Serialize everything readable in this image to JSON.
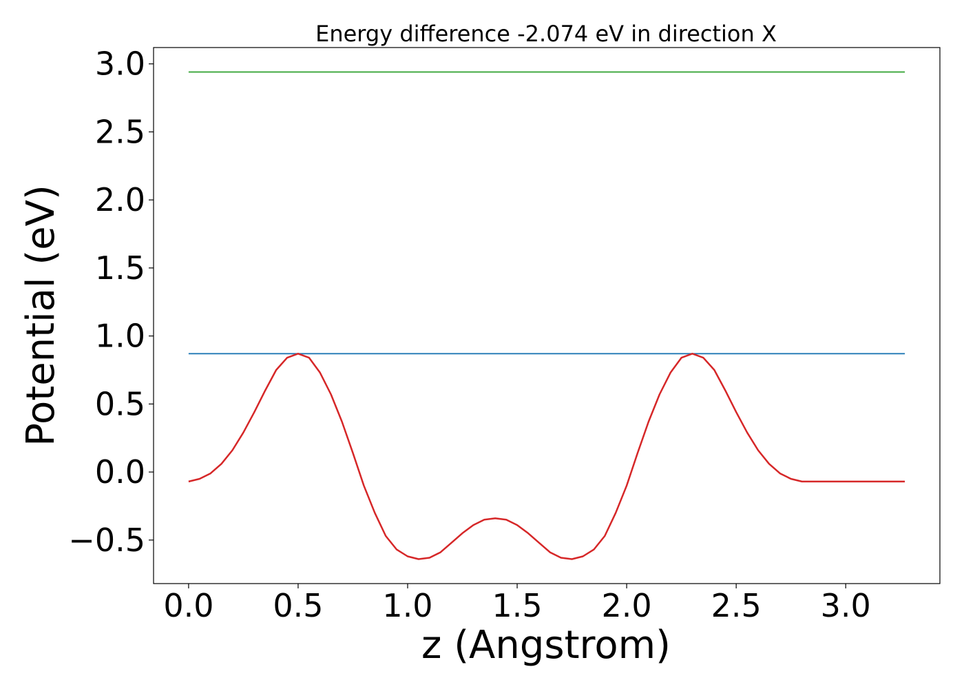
{
  "chart_data": {
    "type": "line",
    "title": "Energy difference -2.074 eV in direction X",
    "xlabel": "z (Angstrom)",
    "ylabel": "Potential (eV)",
    "xlim": [
      -0.16,
      3.43
    ],
    "ylim": [
      -0.82,
      3.12
    ],
    "x_ticks": [
      0.0,
      0.5,
      1.0,
      1.5,
      2.0,
      2.5,
      3.0
    ],
    "x_tick_labels": [
      "0.0",
      "0.5",
      "1.0",
      "1.5",
      "2.0",
      "2.5",
      "3.0"
    ],
    "y_ticks": [
      -0.5,
      0.0,
      0.5,
      1.0,
      1.5,
      2.0,
      2.5,
      3.0
    ],
    "y_tick_labels": [
      "−0.5",
      "0.0",
      "0.5",
      "1.0",
      "1.5",
      "2.0",
      "2.5",
      "3.0"
    ],
    "grid": false,
    "series": [
      {
        "color": "#2ca02c",
        "x": [
          0.0,
          3.27
        ],
        "y": [
          2.94,
          2.94
        ]
      },
      {
        "color": "#1f77b4",
        "x": [
          0.0,
          3.27
        ],
        "y": [
          0.87,
          0.87
        ]
      },
      {
        "color": "#d62728",
        "x": [
          0.0,
          0.05,
          0.1,
          0.15,
          0.2,
          0.25,
          0.3,
          0.35,
          0.4,
          0.45,
          0.5,
          0.55,
          0.6,
          0.65,
          0.7,
          0.75,
          0.8,
          0.85,
          0.9,
          0.95,
          1.0,
          1.05,
          1.1,
          1.15,
          1.2,
          1.25,
          1.3,
          1.35,
          1.4,
          1.45,
          1.5,
          1.55,
          1.6,
          1.65,
          1.7,
          1.75,
          1.8,
          1.85,
          1.9,
          1.95,
          2.0,
          2.05,
          2.1,
          2.15,
          2.2,
          2.25,
          2.3,
          2.35,
          2.4,
          2.45,
          2.5,
          2.55,
          2.6,
          2.65,
          2.7,
          2.75,
          2.8,
          2.85,
          2.9,
          2.95,
          3.0,
          3.05,
          3.1,
          3.15,
          3.2,
          3.27
        ],
        "y": [
          -0.07,
          -0.05,
          -0.01,
          0.06,
          0.16,
          0.29,
          0.44,
          0.6,
          0.75,
          0.84,
          0.87,
          0.84,
          0.73,
          0.57,
          0.37,
          0.14,
          -0.1,
          -0.3,
          -0.47,
          -0.57,
          -0.62,
          -0.64,
          -0.63,
          -0.59,
          -0.52,
          -0.45,
          -0.39,
          -0.35,
          -0.34,
          -0.35,
          -0.39,
          -0.45,
          -0.52,
          -0.59,
          -0.63,
          -0.64,
          -0.62,
          -0.57,
          -0.47,
          -0.3,
          -0.1,
          0.14,
          0.37,
          0.57,
          0.73,
          0.84,
          0.87,
          0.84,
          0.75,
          0.6,
          0.44,
          0.29,
          0.16,
          0.06,
          -0.01,
          -0.05,
          -0.07,
          -0.07,
          -0.07,
          -0.07,
          -0.07,
          -0.07,
          -0.07,
          -0.07,
          -0.07,
          -0.07
        ]
      }
    ]
  }
}
